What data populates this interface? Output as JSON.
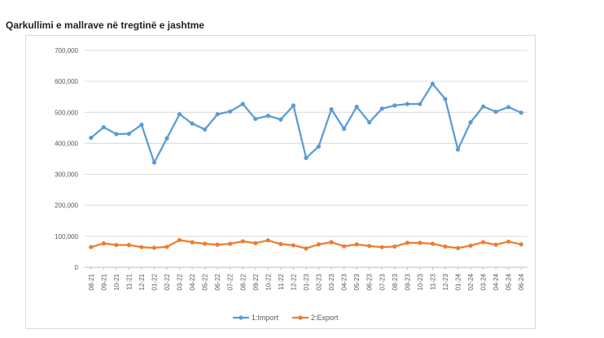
{
  "page": {
    "title": "Qarkullimi e mallrave në tregtinë e jashtme"
  },
  "chart_data": {
    "type": "line",
    "title": "",
    "xlabel": "",
    "ylabel": "",
    "ylim": [
      0,
      700000
    ],
    "yticks": [
      "0",
      "100,000",
      "200,000",
      "300,000",
      "400,000",
      "500,000",
      "600,000",
      "700,000"
    ],
    "grid": true,
    "legend_position": "bottom",
    "categories": [
      "08-21",
      "09-21",
      "10-21",
      "11-21",
      "12-21",
      "01-22",
      "02-22",
      "03-22",
      "04-22",
      "05-22",
      "06-22",
      "07-22",
      "08-22",
      "09-22",
      "10-22",
      "11-22",
      "12-22",
      "01-23",
      "02-23",
      "03-23",
      "04-23",
      "05-23",
      "06-23",
      "07-23",
      "08-23",
      "09-23",
      "10-23",
      "11-23",
      "12-23",
      "01-24",
      "02-24",
      "03-24",
      "04-24",
      "05-24",
      "06-24"
    ],
    "series": [
      {
        "name": "1:Import",
        "color": "#5B9BD5",
        "values": [
          418000,
          452000,
          430000,
          431000,
          460000,
          338000,
          416000,
          494000,
          464000,
          445000,
          494000,
          503000,
          527000,
          479000,
          489000,
          477000,
          522000,
          353000,
          390000,
          510000,
          447000,
          518000,
          468000,
          512000,
          522000,
          527000,
          527000,
          592000,
          543000,
          380000,
          468000,
          519000,
          502000,
          517000,
          499000
        ]
      },
      {
        "name": "2:Export",
        "color": "#ED7D31",
        "values": [
          65000,
          77000,
          72000,
          72000,
          65000,
          63000,
          66000,
          88000,
          81000,
          76000,
          73000,
          76000,
          84000,
          78000,
          87000,
          75000,
          71000,
          61000,
          74000,
          81000,
          68000,
          74000,
          69000,
          65000,
          67000,
          79000,
          79000,
          76000,
          67000,
          62000,
          70000,
          81000,
          73000,
          83000,
          74000
        ]
      }
    ]
  }
}
